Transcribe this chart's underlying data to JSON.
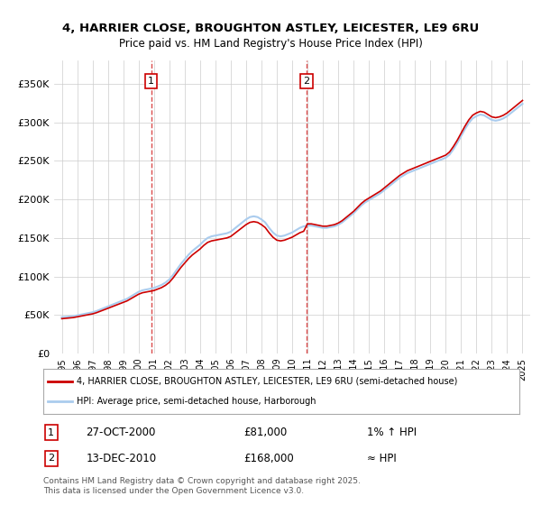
{
  "title_line1": "4, HARRIER CLOSE, BROUGHTON ASTLEY, LEICESTER, LE9 6RU",
  "title_line2": "Price paid vs. HM Land Registry's House Price Index (HPI)",
  "legend_label1": "4, HARRIER CLOSE, BROUGHTON ASTLEY, LEICESTER, LE9 6RU (semi-detached house)",
  "legend_label2": "HPI: Average price, semi-detached house, Harborough",
  "annotation1_label": "1",
  "annotation1_date": "27-OCT-2000",
  "annotation1_price": "£81,000",
  "annotation1_hpi": "1% ↑ HPI",
  "annotation2_label": "2",
  "annotation2_date": "13-DEC-2010",
  "annotation2_price": "£168,000",
  "annotation2_hpi": "≈ HPI",
  "footnote": "Contains HM Land Registry data © Crown copyright and database right 2025.\nThis data is licensed under the Open Government Licence v3.0.",
  "line1_color": "#cc0000",
  "line2_color": "#aaccee",
  "annotation_color": "#cc0000",
  "background_color": "#ffffff",
  "grid_color": "#cccccc",
  "ylim": [
    0,
    380000
  ],
  "yticks": [
    0,
    50000,
    100000,
    150000,
    200000,
    250000,
    300000,
    350000
  ],
  "ytick_labels": [
    "£0",
    "£50K",
    "£100K",
    "£150K",
    "£200K",
    "£250K",
    "£300K",
    "£350K"
  ],
  "sale1_x": 2000.82,
  "sale1_y": 81000,
  "sale2_x": 2010.95,
  "sale2_y": 168000,
  "hpi_years": [
    1995.0,
    1995.25,
    1995.5,
    1995.75,
    1996.0,
    1996.25,
    1996.5,
    1996.75,
    1997.0,
    1997.25,
    1997.5,
    1997.75,
    1998.0,
    1998.25,
    1998.5,
    1998.75,
    1999.0,
    1999.25,
    1999.5,
    1999.75,
    2000.0,
    2000.25,
    2000.5,
    2000.75,
    2001.0,
    2001.25,
    2001.5,
    2001.75,
    2002.0,
    2002.25,
    2002.5,
    2002.75,
    2003.0,
    2003.25,
    2003.5,
    2003.75,
    2004.0,
    2004.25,
    2004.5,
    2004.75,
    2005.0,
    2005.25,
    2005.5,
    2005.75,
    2006.0,
    2006.25,
    2006.5,
    2006.75,
    2007.0,
    2007.25,
    2007.5,
    2007.75,
    2008.0,
    2008.25,
    2008.5,
    2008.75,
    2009.0,
    2009.25,
    2009.5,
    2009.75,
    2010.0,
    2010.25,
    2010.5,
    2010.75,
    2011.0,
    2011.25,
    2011.5,
    2011.75,
    2012.0,
    2012.25,
    2012.5,
    2012.75,
    2013.0,
    2013.25,
    2013.5,
    2013.75,
    2014.0,
    2014.25,
    2014.5,
    2014.75,
    2015.0,
    2015.25,
    2015.5,
    2015.75,
    2016.0,
    2016.25,
    2016.5,
    2016.75,
    2017.0,
    2017.25,
    2017.5,
    2017.75,
    2018.0,
    2018.25,
    2018.5,
    2018.75,
    2019.0,
    2019.25,
    2019.5,
    2019.75,
    2020.0,
    2020.25,
    2020.5,
    2020.75,
    2021.0,
    2021.25,
    2021.5,
    2021.75,
    2022.0,
    2022.25,
    2022.5,
    2022.75,
    2023.0,
    2023.25,
    2023.5,
    2023.75,
    2024.0,
    2024.25,
    2024.5,
    2024.75,
    2025.0
  ],
  "hpi_values": [
    47000,
    47500,
    48000,
    48500,
    49500,
    50500,
    51500,
    52500,
    53500,
    55000,
    57000,
    59000,
    61000,
    63000,
    65000,
    67000,
    69000,
    71000,
    74000,
    77000,
    80000,
    82000,
    83000,
    84000,
    85000,
    87000,
    89000,
    92000,
    96000,
    102000,
    109000,
    116000,
    122000,
    128000,
    133000,
    137000,
    141000,
    146000,
    150000,
    152000,
    153000,
    154000,
    155000,
    156000,
    158000,
    162000,
    166000,
    170000,
    174000,
    177000,
    178000,
    177000,
    174000,
    170000,
    163000,
    157000,
    153000,
    152000,
    153000,
    155000,
    157000,
    160000,
    163000,
    165000,
    166000,
    166000,
    165000,
    164000,
    163000,
    163000,
    164000,
    165000,
    167000,
    170000,
    174000,
    178000,
    182000,
    187000,
    192000,
    196000,
    199000,
    202000,
    205000,
    208000,
    212000,
    216000,
    220000,
    224000,
    228000,
    231000,
    234000,
    236000,
    238000,
    240000,
    242000,
    244000,
    246000,
    248000,
    250000,
    252000,
    254000,
    258000,
    265000,
    273000,
    282000,
    291000,
    299000,
    305000,
    308000,
    310000,
    309000,
    306000,
    303000,
    302000,
    303000,
    305000,
    308000,
    312000,
    316000,
    320000,
    324000
  ],
  "xtick_years": [
    1995,
    1996,
    1997,
    1998,
    1999,
    2000,
    2001,
    2002,
    2003,
    2004,
    2005,
    2006,
    2007,
    2008,
    2009,
    2010,
    2011,
    2012,
    2013,
    2014,
    2015,
    2016,
    2017,
    2018,
    2019,
    2020,
    2021,
    2022,
    2023,
    2024,
    2025
  ]
}
